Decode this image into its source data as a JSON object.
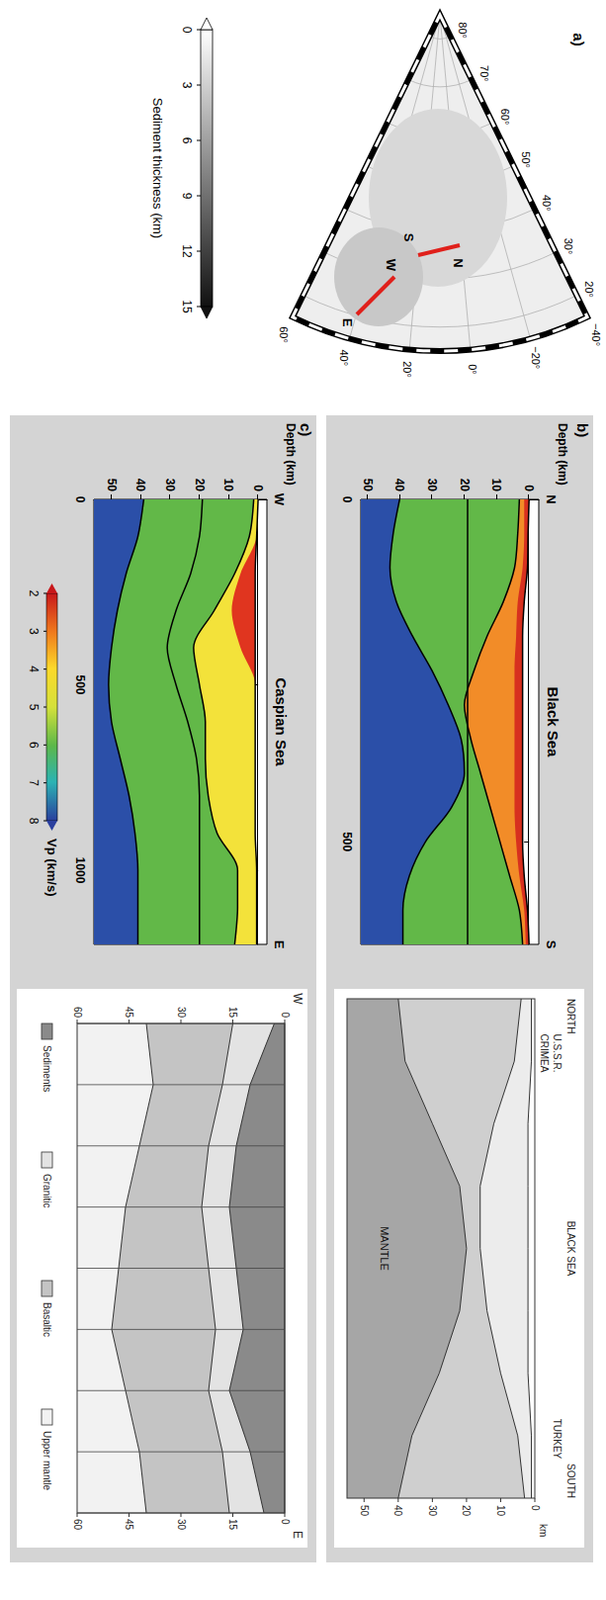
{
  "map": {
    "label": "a)",
    "lat_labels": [
      "80°",
      "70°",
      "60°",
      "50°",
      "40°",
      "30°",
      "20°"
    ],
    "lon_labels": [
      "−40°",
      "−20°",
      "0°",
      "20°",
      "40°",
      "60°"
    ],
    "profile_labels": [
      "N",
      "S",
      "W",
      "E"
    ],
    "colorbar": {
      "title": "Sediment thickness (km)",
      "range": [
        0,
        15
      ],
      "ticks": [
        0,
        3,
        6,
        9,
        12,
        15
      ]
    }
  },
  "chart_data": [
    {
      "type": "area",
      "label": "b)",
      "title": "Black Sea",
      "x_end_labels": [
        "N",
        "S"
      ],
      "ylabel": "Depth (km)",
      "xlim": [
        0,
        650
      ],
      "xticks": [
        0,
        500
      ],
      "ylim": [
        -3,
        52
      ],
      "yticks": [
        0,
        10,
        20,
        30,
        40,
        50
      ],
      "x": [
        0,
        50,
        100,
        150,
        200,
        250,
        300,
        350,
        400,
        450,
        500,
        550,
        600,
        650
      ],
      "series": [
        {
          "type": "area",
          "color": "#d7301f",
          "line_style": "solid",
          "values": [
            0,
            0.3,
            0.5,
            1.5,
            2,
            2,
            2,
            2,
            2,
            2,
            2,
            1.5,
            0.5,
            0
          ]
        },
        {
          "type": "area",
          "color": "#f28c28",
          "line_style": "none",
          "values": [
            1.5,
            1.5,
            2,
            3.5,
            4,
            4.5,
            4.5,
            4.5,
            4.5,
            4.5,
            4,
            3,
            1.5,
            1
          ]
        },
        {
          "type": "area",
          "color": "#62b848",
          "line_style": "solid",
          "values": [
            3,
            3.5,
            4.5,
            8,
            13,
            17,
            20,
            18,
            15,
            12,
            9,
            6,
            3,
            2
          ]
        },
        {
          "type": "line",
          "color": "#000000",
          "line_style": "solid",
          "values": [
            19,
            19,
            19,
            19,
            19,
            19,
            19,
            19,
            19,
            19,
            19,
            19,
            19,
            19
          ]
        },
        {
          "type": "area",
          "color": "#2b4fa8",
          "line_style": "solid",
          "values": [
            40,
            42,
            43,
            41,
            36,
            30,
            25,
            21,
            20,
            24,
            32,
            37,
            39,
            39
          ]
        }
      ]
    },
    {
      "type": "area",
      "label": "c)",
      "title": "Caspian Sea",
      "x_end_labels": [
        "W",
        "E"
      ],
      "ylabel": "Depth (km)",
      "xlim": [
        0,
        1200
      ],
      "xticks": [
        0,
        500,
        1000
      ],
      "ylim": [
        -3,
        56
      ],
      "yticks": [
        0,
        10,
        20,
        30,
        40,
        50
      ],
      "x": [
        0,
        100,
        200,
        300,
        400,
        500,
        600,
        700,
        800,
        900,
        1000,
        1100,
        1200
      ],
      "series": [
        {
          "type": "area",
          "color": "#e0351f",
          "line_style": "solid",
          "values": [
            0,
            0.5,
            1,
            1,
            1,
            1,
            1,
            1,
            1,
            1,
            0.5,
            0.5,
            0.5
          ]
        },
        {
          "type": "area",
          "color": "#f3e23a",
          "line_style": "none",
          "values": [
            0,
            0.5,
            6,
            9,
            6,
            1,
            1,
            1,
            1,
            1,
            0.5,
            0.5,
            0.5
          ]
        },
        {
          "type": "area",
          "color": "#62b848",
          "line_style": "solid",
          "values": [
            1.5,
            3,
            8,
            15,
            22,
            20,
            18,
            18,
            17,
            14,
            7,
            7,
            8
          ]
        },
        {
          "type": "line",
          "color": "#000000",
          "line_style": "solid",
          "values": [
            19,
            20,
            23,
            28,
            31,
            28,
            24,
            21,
            20,
            20,
            20,
            20,
            20
          ]
        },
        {
          "type": "area",
          "color": "#2b4fa8",
          "line_style": "solid",
          "values": [
            39,
            41,
            45,
            48,
            50,
            51,
            50,
            47,
            44,
            42,
            41,
            41,
            41
          ]
        }
      ]
    }
  ],
  "colorbar": {
    "title": "Vp (km/s)",
    "range": [
      2,
      8
    ],
    "ticks": [
      2,
      3,
      4,
      5,
      6,
      7,
      8
    ]
  },
  "reference_figures": [
    {
      "labels": [
        "NORTH",
        "U.S.S.R.",
        "CRIMEA",
        "BLACK SEA",
        "TURKEY",
        "SOUTH"
      ],
      "mantle_label": "MANTLE",
      "depth_unit": "km",
      "ylim": [
        0,
        55
      ],
      "depth_ticks": [
        0,
        10,
        20,
        30,
        40,
        50
      ],
      "boundaries": [
        {
          "color": "#ececec",
          "values": [
            1,
            1,
            2,
            2,
            2,
            2,
            2,
            1,
            1
          ]
        },
        {
          "color": "#cfcfcf",
          "values": [
            4,
            6,
            12,
            16,
            16,
            14,
            10,
            5,
            3
          ]
        },
        {
          "color": "#a6a6a6",
          "values": [
            40,
            38,
            30,
            22,
            20,
            22,
            28,
            36,
            40
          ]
        }
      ]
    },
    {
      "x_end_labels": [
        "W",
        "E"
      ],
      "ylim": [
        0,
        60
      ],
      "depth_ticks": [
        0,
        15,
        30,
        45,
        60
      ],
      "layer_names": [
        "Sediments",
        "Granitic",
        "Basaltic",
        "Upper mantle"
      ],
      "boundaries": [
        {
          "color": "#8a8a8a",
          "values": [
            0,
            0,
            0,
            0,
            0,
            0,
            0,
            0,
            0
          ]
        },
        {
          "color": "#e3e3e3",
          "values": [
            3,
            10,
            14,
            16,
            14,
            12,
            16,
            10,
            6
          ]
        },
        {
          "color": "#c4c4c4",
          "values": [
            15,
            18,
            22,
            24,
            22,
            20,
            22,
            18,
            16
          ]
        },
        {
          "color": "#f2f2f2",
          "values": [
            40,
            38,
            42,
            46,
            48,
            50,
            46,
            42,
            40
          ]
        }
      ]
    }
  ]
}
